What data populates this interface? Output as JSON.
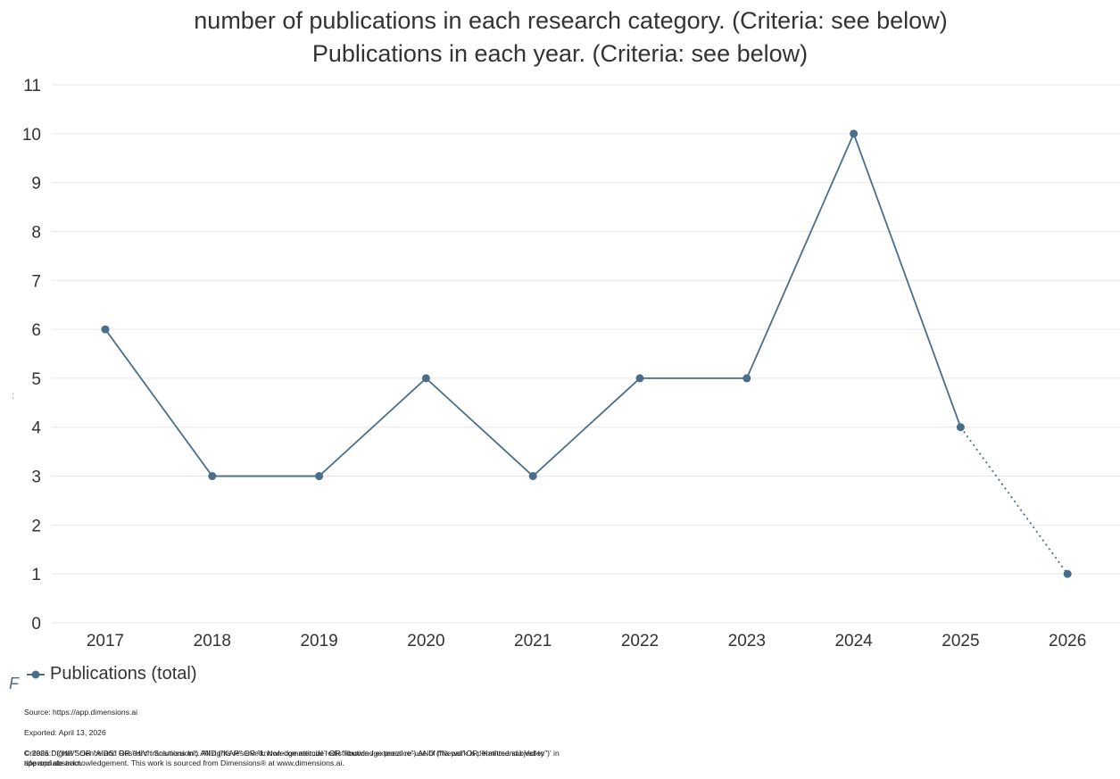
{
  "chart_data": {
    "type": "line",
    "title": "number of publications in each research category. (Criteria: see below)",
    "subtitle": "Publications in each year. (Criteria: see below)",
    "categories": [
      "2017",
      "2018",
      "2019",
      "2020",
      "2021",
      "2022",
      "2023",
      "2024",
      "2025",
      "2026"
    ],
    "series": [
      {
        "name": "Publications (total)",
        "values": [
          6,
          3,
          3,
          5,
          3,
          5,
          5,
          10,
          4,
          1
        ]
      }
    ],
    "projected_segment_from": "2025",
    "ylim": [
      0,
      11
    ],
    "yticks": [
      0,
      1,
      2,
      3,
      4,
      5,
      6,
      7,
      8,
      9,
      10,
      11
    ],
    "grid": true,
    "legend_position": "bottom-left",
    "xlabel": "",
    "ylabel": ""
  },
  "colors": {
    "series": "#4a6e8a",
    "grid": "#e6e6e6",
    "text": "#333333"
  },
  "legend": {
    "label": "Publications (total)"
  },
  "stray": {
    "left_glyph": "F",
    "dot_glyph": ":"
  },
  "footer": {
    "source": "Source: https://app.dimensions.ai",
    "exported": "Exported: April 13, 2026",
    "criteria": "Criteria: ' (\"HIV\" OR \"AIDS\" OR \"HIV transmission\") AND (\"KAP\" OR \"knowledge attitude\" OR \"knowledge practice\") AND (\"Nepal\" OR \"Kathmandu Valley\")' in title and abstract.",
    "copyright": "© 2026 Digital Science and Research Solutions Inc. All rights reserved. Non-commercial redistribution / external re-use of this work is permitted subject to appropriate acknowledgement. This work is sourced from Dimensions® at www.dimensions.ai."
  }
}
